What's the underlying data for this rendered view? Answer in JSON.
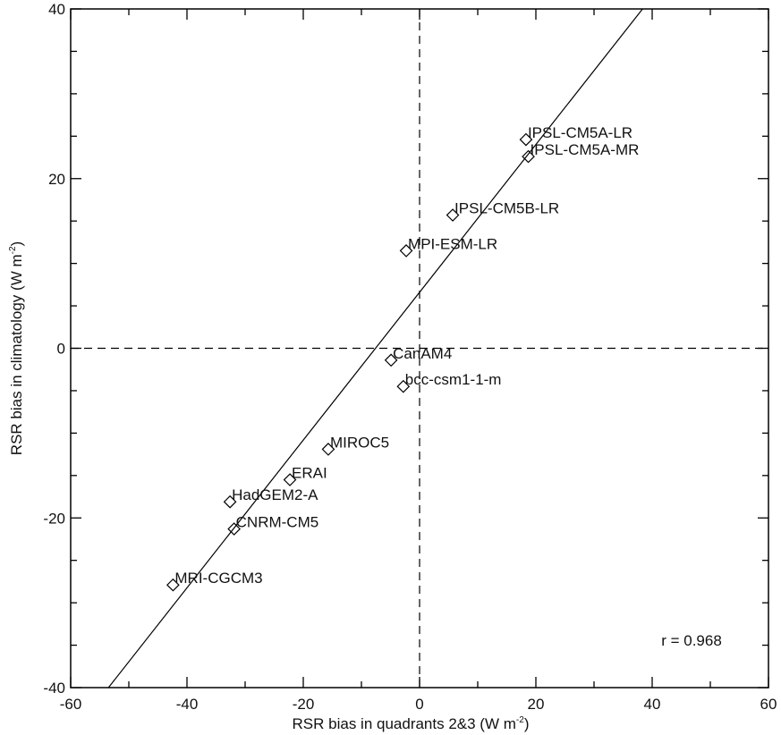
{
  "chart_data": {
    "type": "scatter",
    "xlabel": "RSR bias in quadrants 2&3 (W m",
    "xlabel_sup": "-2",
    "xlabel_end": ")",
    "ylabel": "RSR bias in climatology (W m",
    "ylabel_sup": "-2",
    "ylabel_end": ")",
    "xlim": [
      -60,
      60
    ],
    "ylim": [
      -40,
      40
    ],
    "xticks": [
      -60,
      -40,
      -20,
      0,
      20,
      40,
      60
    ],
    "yticks": [
      -40,
      -20,
      0,
      20,
      40
    ],
    "x_minor_step": 10,
    "y_minor_step": 5,
    "marker": "diamond",
    "points": [
      {
        "name": "IPSL-CM5A-LR",
        "x": 18.3,
        "y": 24.6
      },
      {
        "name": "IPSL-CM5A-MR",
        "x": 18.7,
        "y": 22.6
      },
      {
        "name": "IPSL-CM5B-LR",
        "x": 5.7,
        "y": 15.7
      },
      {
        "name": "MPI-ESM-LR",
        "x": -2.3,
        "y": 11.5
      },
      {
        "name": "CanAM4",
        "x": -4.9,
        "y": -1.4
      },
      {
        "name": "bcc-csm1-1-m",
        "x": -2.8,
        "y": -4.5
      },
      {
        "name": "MIROC5",
        "x": -15.7,
        "y": -11.9
      },
      {
        "name": "ERAI",
        "x": -22.3,
        "y": -15.5
      },
      {
        "name": "HadGEM2-A",
        "x": -32.6,
        "y": -18.1
      },
      {
        "name": "CNRM-CM5",
        "x": -31.9,
        "y": -21.3
      },
      {
        "name": "MRI-CGCM3",
        "x": -42.4,
        "y": -27.9
      }
    ],
    "fit_line": {
      "slope": 0.871,
      "intercept": 6.6
    },
    "reference_lines": {
      "x": 0,
      "y": 0,
      "style": "dashed"
    },
    "annotation": "r = 0.968"
  }
}
